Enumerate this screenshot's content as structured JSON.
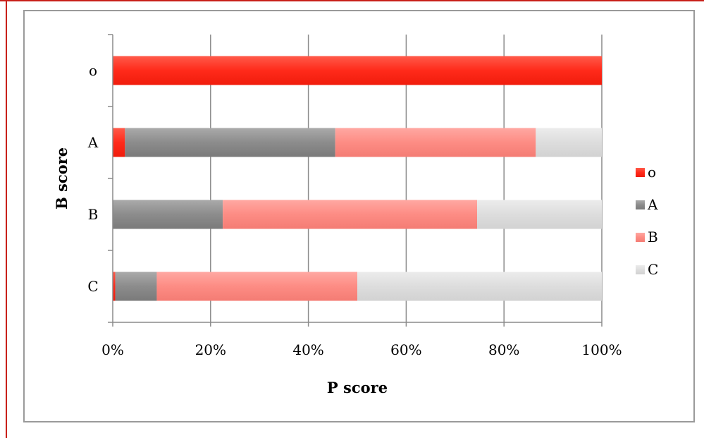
{
  "chart_data": {
    "type": "bar",
    "orientation": "horizontal",
    "stacking": "percent",
    "categories": [
      "o",
      "A",
      "B",
      "C"
    ],
    "series": [
      {
        "name": "o",
        "color": "#ff2a1a",
        "values": [
          100,
          2.5,
          0,
          0.5
        ]
      },
      {
        "name": "A",
        "color": "#8c8c8c",
        "values": [
          0,
          43,
          22.5,
          8.5
        ]
      },
      {
        "name": "B",
        "color": "#fd8c84",
        "values": [
          0,
          41,
          52,
          41
        ]
      },
      {
        "name": "C",
        "color": "#dddddd",
        "values": [
          0,
          13.5,
          25.5,
          50
        ]
      }
    ],
    "x_ticks": [
      "0%",
      "20%",
      "40%",
      "60%",
      "80%",
      "100%"
    ],
    "xlim": [
      0,
      100
    ],
    "xlabel": "P score",
    "ylabel": "B score",
    "title": "",
    "grid": true,
    "legend_position": "right"
  }
}
